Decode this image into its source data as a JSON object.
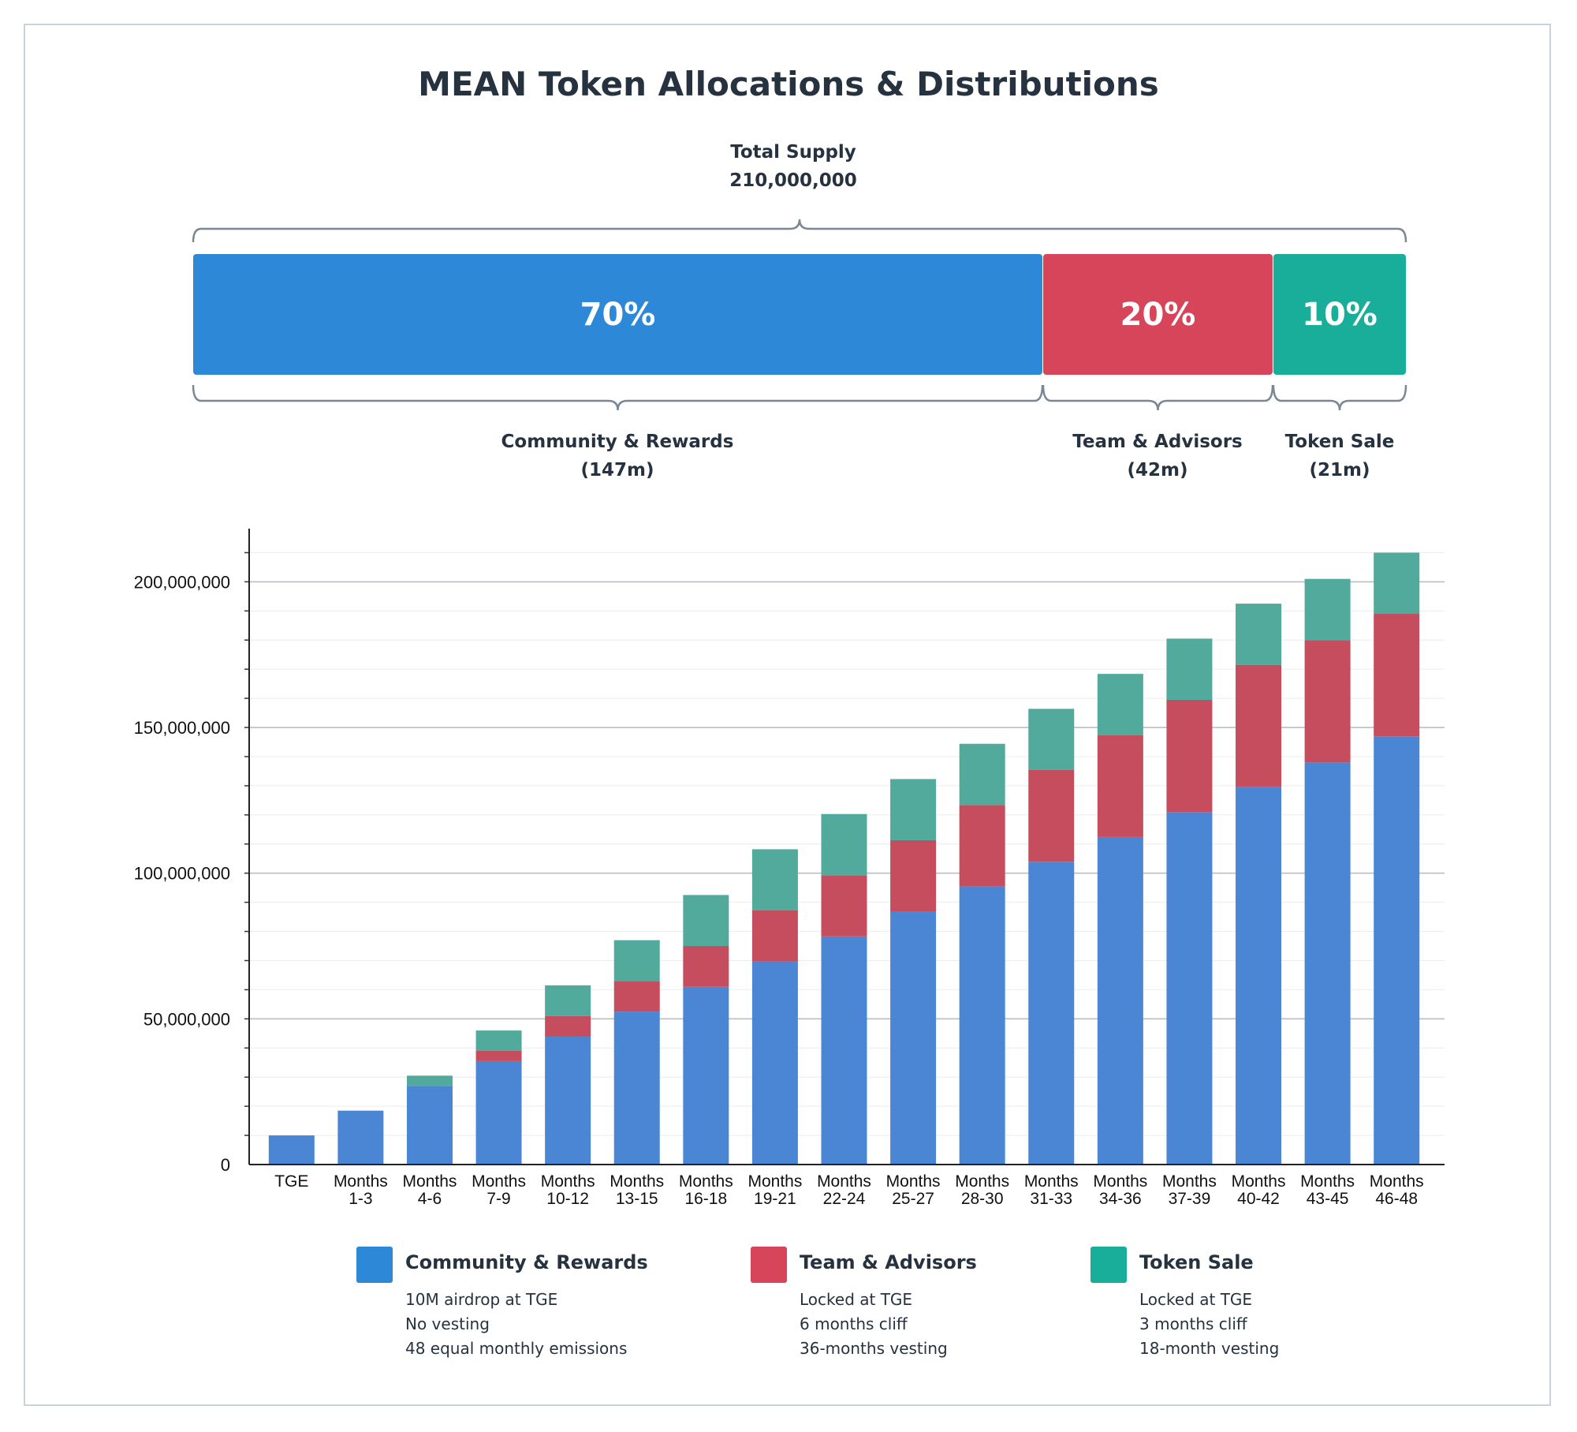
{
  "title": "MEAN Token Allocations & Distributions",
  "supply": {
    "label": "Total Supply",
    "value": "210,000,000"
  },
  "allocations": [
    {
      "pct_label": "70%",
      "share": 0.7,
      "name": "Community & Rewards",
      "amount": "(147m)",
      "color": "#2e88d8"
    },
    {
      "pct_label": "20%",
      "share": 0.2,
      "name": "Team & Advisors",
      "amount": "(42m)",
      "color": "#d6455a"
    },
    {
      "pct_label": "10%",
      "share": 0.1,
      "name": "Token Sale",
      "amount": "(21m)",
      "color": "#18ae9a"
    }
  ],
  "chart_data": {
    "type": "bar",
    "stacked": true,
    "categories": [
      [
        "TGE"
      ],
      [
        "Months",
        "1-3"
      ],
      [
        "Months",
        "4-6"
      ],
      [
        "Months",
        "7-9"
      ],
      [
        "Months",
        "10-12"
      ],
      [
        "Months",
        "13-15"
      ],
      [
        "Months",
        "16-18"
      ],
      [
        "Months",
        "19-21"
      ],
      [
        "Months",
        "22-24"
      ],
      [
        "Months",
        "25-27"
      ],
      [
        "Months",
        "28-30"
      ],
      [
        "Months",
        "31-33"
      ],
      [
        "Months",
        "34-36"
      ],
      [
        "Months",
        "37-39"
      ],
      [
        "Months",
        "40-42"
      ],
      [
        "Months",
        "43-45"
      ],
      [
        "Months",
        "46-48"
      ]
    ],
    "series": [
      {
        "name": "Community & Rewards",
        "color": "#4a86d4",
        "values": [
          10000000,
          18500000,
          27000000,
          35500000,
          44000000,
          52500000,
          61000000,
          69700000,
          78300000,
          86800000,
          95400000,
          103900000,
          112400000,
          121000000,
          129500000,
          138000000,
          147000000
        ]
      },
      {
        "name": "Team & Advisors",
        "color": "#c54d5d",
        "values": [
          0,
          0,
          0,
          3500000,
          7000000,
          10500000,
          14000000,
          17500000,
          21000000,
          24500000,
          28000000,
          31500000,
          35000000,
          38500000,
          42000000,
          42000000,
          42000000
        ]
      },
      {
        "name": "Token Sale",
        "color": "#52aa9c",
        "values": [
          0,
          0,
          3500000,
          7000000,
          10500000,
          14000000,
          17500000,
          21000000,
          21000000,
          21000000,
          21000000,
          21000000,
          21000000,
          21000000,
          21000000,
          21000000,
          21000000
        ]
      }
    ],
    "ylim": [
      0,
      215000000
    ],
    "yticks": [
      0,
      50000000,
      100000000,
      150000000,
      200000000
    ],
    "ytick_labels": [
      "0",
      "50,000,000",
      "100,000,000",
      "150,000,000",
      "200,000,000"
    ],
    "minor_step": 10000000,
    "grid": true,
    "xlabel": "",
    "ylabel": ""
  },
  "legend": [
    {
      "name": "Community & Rewards",
      "color": "#2e88d8",
      "notes": [
        "10M airdrop at TGE",
        "No vesting",
        "48 equal monthly emissions"
      ]
    },
    {
      "name": "Team & Advisors",
      "color": "#d6455a",
      "notes": [
        "Locked at TGE",
        "6 months cliff",
        "36-months vesting"
      ]
    },
    {
      "name": "Token Sale",
      "color": "#18ae9a",
      "notes": [
        "Locked at TGE",
        "3 months cliff",
        "18-month vesting"
      ]
    }
  ]
}
